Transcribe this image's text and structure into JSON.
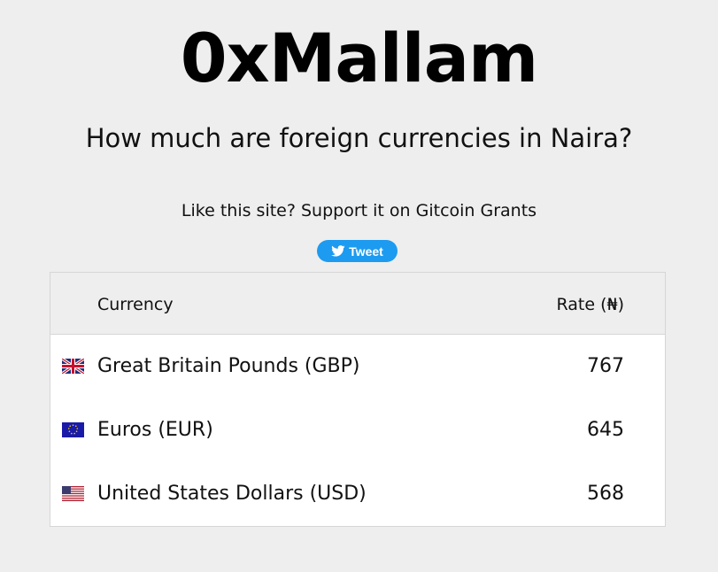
{
  "header": {
    "title": "0xMallam",
    "subtitle": "How much are foreign currencies in Naira?"
  },
  "support": {
    "text": "Like this site? Support it on Gitcoin Grants"
  },
  "tweet_button": {
    "label": "Tweet",
    "icon": "twitter-bird-icon",
    "color": "#1d9bf0"
  },
  "table": {
    "columns": [
      "Currency",
      "Rate (₦)"
    ],
    "rows": [
      {
        "flag": "uk-flag-icon",
        "name": "Great Britain Pounds (GBP)",
        "rate": "767"
      },
      {
        "flag": "eu-flag-icon",
        "name": "Euros (EUR)",
        "rate": "645"
      },
      {
        "flag": "us-flag-icon",
        "name": "United States Dollars (USD)",
        "rate": "568"
      }
    ]
  }
}
